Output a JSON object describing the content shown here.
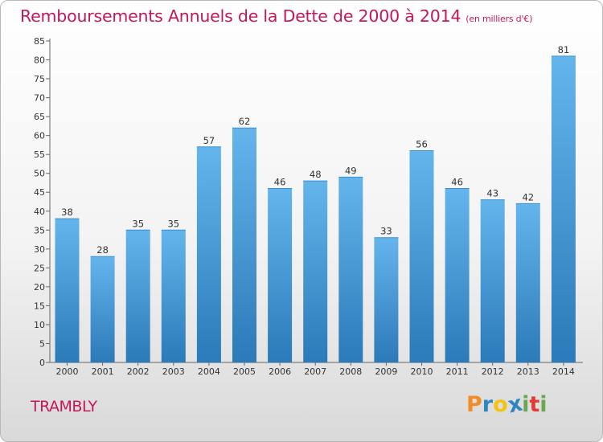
{
  "title": "Remboursements Annuels de la Dette de 2000 à 2014",
  "unit": "(en milliers d'€)",
  "town": "TRAMBLY",
  "logo": {
    "letters": [
      "P",
      "r",
      "o",
      "x",
      "i",
      "t",
      "i"
    ],
    "colors": [
      "#f28c28",
      "#2e86c1",
      "#f2c40f",
      "#2e86c1",
      "#6aa84f",
      "#e53935",
      "#6aa84f"
    ]
  },
  "colors": {
    "bar_light": "#64b5ec",
    "bar_dark": "#2b7ab9",
    "title": "#c2185b"
  },
  "chart_data": {
    "type": "bar",
    "categories": [
      "2000",
      "2001",
      "2002",
      "2003",
      "2004",
      "2005",
      "2006",
      "2007",
      "2008",
      "2009",
      "2010",
      "2011",
      "2012",
      "2013",
      "2014"
    ],
    "values": [
      38,
      28,
      35,
      35,
      57,
      62,
      46,
      48,
      49,
      33,
      56,
      46,
      43,
      42,
      81
    ],
    "yticks": [
      0,
      5,
      10,
      15,
      20,
      25,
      30,
      35,
      40,
      45,
      50,
      55,
      60,
      65,
      70,
      75,
      80,
      85
    ],
    "ylim": [
      0,
      85
    ],
    "grid": false
  }
}
